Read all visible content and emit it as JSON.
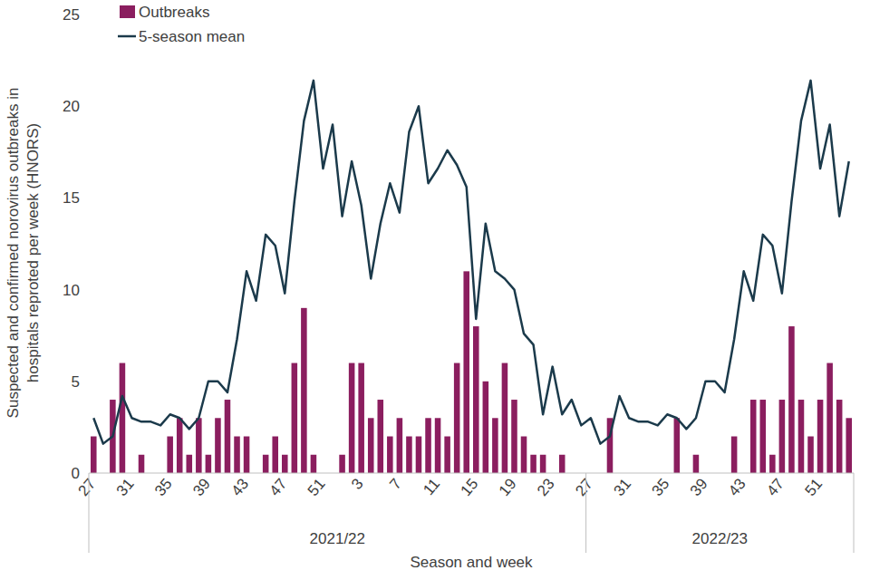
{
  "chart_data": {
    "type": "bar",
    "ylabel": [
      "Suspected and confirmed norovirus outbreaks in",
      "hospitals  reproted per week (HNORS)"
    ],
    "xlabel": "Season and week",
    "categories": [
      "27",
      null,
      null,
      null,
      "31",
      null,
      null,
      null,
      "35",
      null,
      null,
      null,
      "39",
      null,
      null,
      null,
      "43",
      null,
      null,
      null,
      "47",
      null,
      null,
      null,
      "51",
      null,
      null,
      null,
      "3",
      null,
      null,
      null,
      "7",
      null,
      null,
      null,
      "11",
      null,
      null,
      null,
      "15",
      null,
      null,
      null,
      "19",
      null,
      null,
      null,
      "23",
      null,
      null,
      null,
      "27",
      null,
      null,
      null,
      "31",
      null,
      null,
      null,
      "35",
      null,
      null,
      null,
      "39",
      null,
      null,
      null,
      "43",
      null,
      null,
      null,
      "47",
      null,
      null,
      null,
      "51",
      null,
      null,
      null
    ],
    "x_groups": [
      {
        "label": "2021/22",
        "count": 52
      },
      {
        "label": "2022/23",
        "count": 28
      }
    ],
    "series": [
      {
        "name": "Outbreaks",
        "type": "bar",
        "color": "#8b1e5f",
        "values": [
          2,
          0,
          4,
          6,
          0,
          1,
          0,
          0,
          2,
          3,
          1,
          3,
          1,
          3,
          4,
          2,
          2,
          0,
          1,
          2,
          1,
          6,
          9,
          1,
          0,
          0,
          1,
          6,
          6,
          3,
          4,
          2,
          3,
          2,
          2,
          3,
          3,
          2,
          6,
          11,
          8,
          5,
          3,
          6,
          4,
          2,
          1,
          1,
          0,
          1,
          0,
          0,
          0,
          0,
          3,
          0,
          0,
          0,
          0,
          0,
          0,
          3,
          0,
          1,
          0,
          0,
          0,
          2,
          0,
          4,
          4,
          1,
          4,
          8,
          4,
          2,
          4,
          6,
          4,
          3
        ]
      },
      {
        "name": "5-season mean",
        "type": "line",
        "color": "#1b3a4b",
        "line_style": "solid",
        "values": [
          3.0,
          1.6,
          2.0,
          4.2,
          3.0,
          2.8,
          2.8,
          2.6,
          3.2,
          3.0,
          2.4,
          3.0,
          5.0,
          5.0,
          4.4,
          7.3,
          11.0,
          9.4,
          13.0,
          12.4,
          9.8,
          14.8,
          19.2,
          21.4,
          16.6,
          19.0,
          14.0,
          17.0,
          14.6,
          10.6,
          13.6,
          15.8,
          14.2,
          18.6,
          20.0,
          15.8,
          16.6,
          17.6,
          16.8,
          15.6,
          8.4,
          13.6,
          11.0,
          10.6,
          10.0,
          7.6,
          7.0,
          3.2,
          5.8,
          3.2,
          4.0,
          2.6,
          3.0,
          1.6,
          2.0,
          4.2,
          3.0,
          2.8,
          2.8,
          2.6,
          3.2,
          3.0,
          2.4,
          3.0,
          5.0,
          5.0,
          4.4,
          7.3,
          11.0,
          9.4,
          13.0,
          12.4,
          9.8,
          14.8,
          19.2,
          21.4,
          16.6,
          19.0,
          14.0,
          17.0
        ]
      }
    ],
    "ylim": [
      0,
      25
    ],
    "yticks": [
      0,
      5,
      10,
      15,
      20,
      25
    ],
    "grid": false,
    "legend": "upper left"
  }
}
